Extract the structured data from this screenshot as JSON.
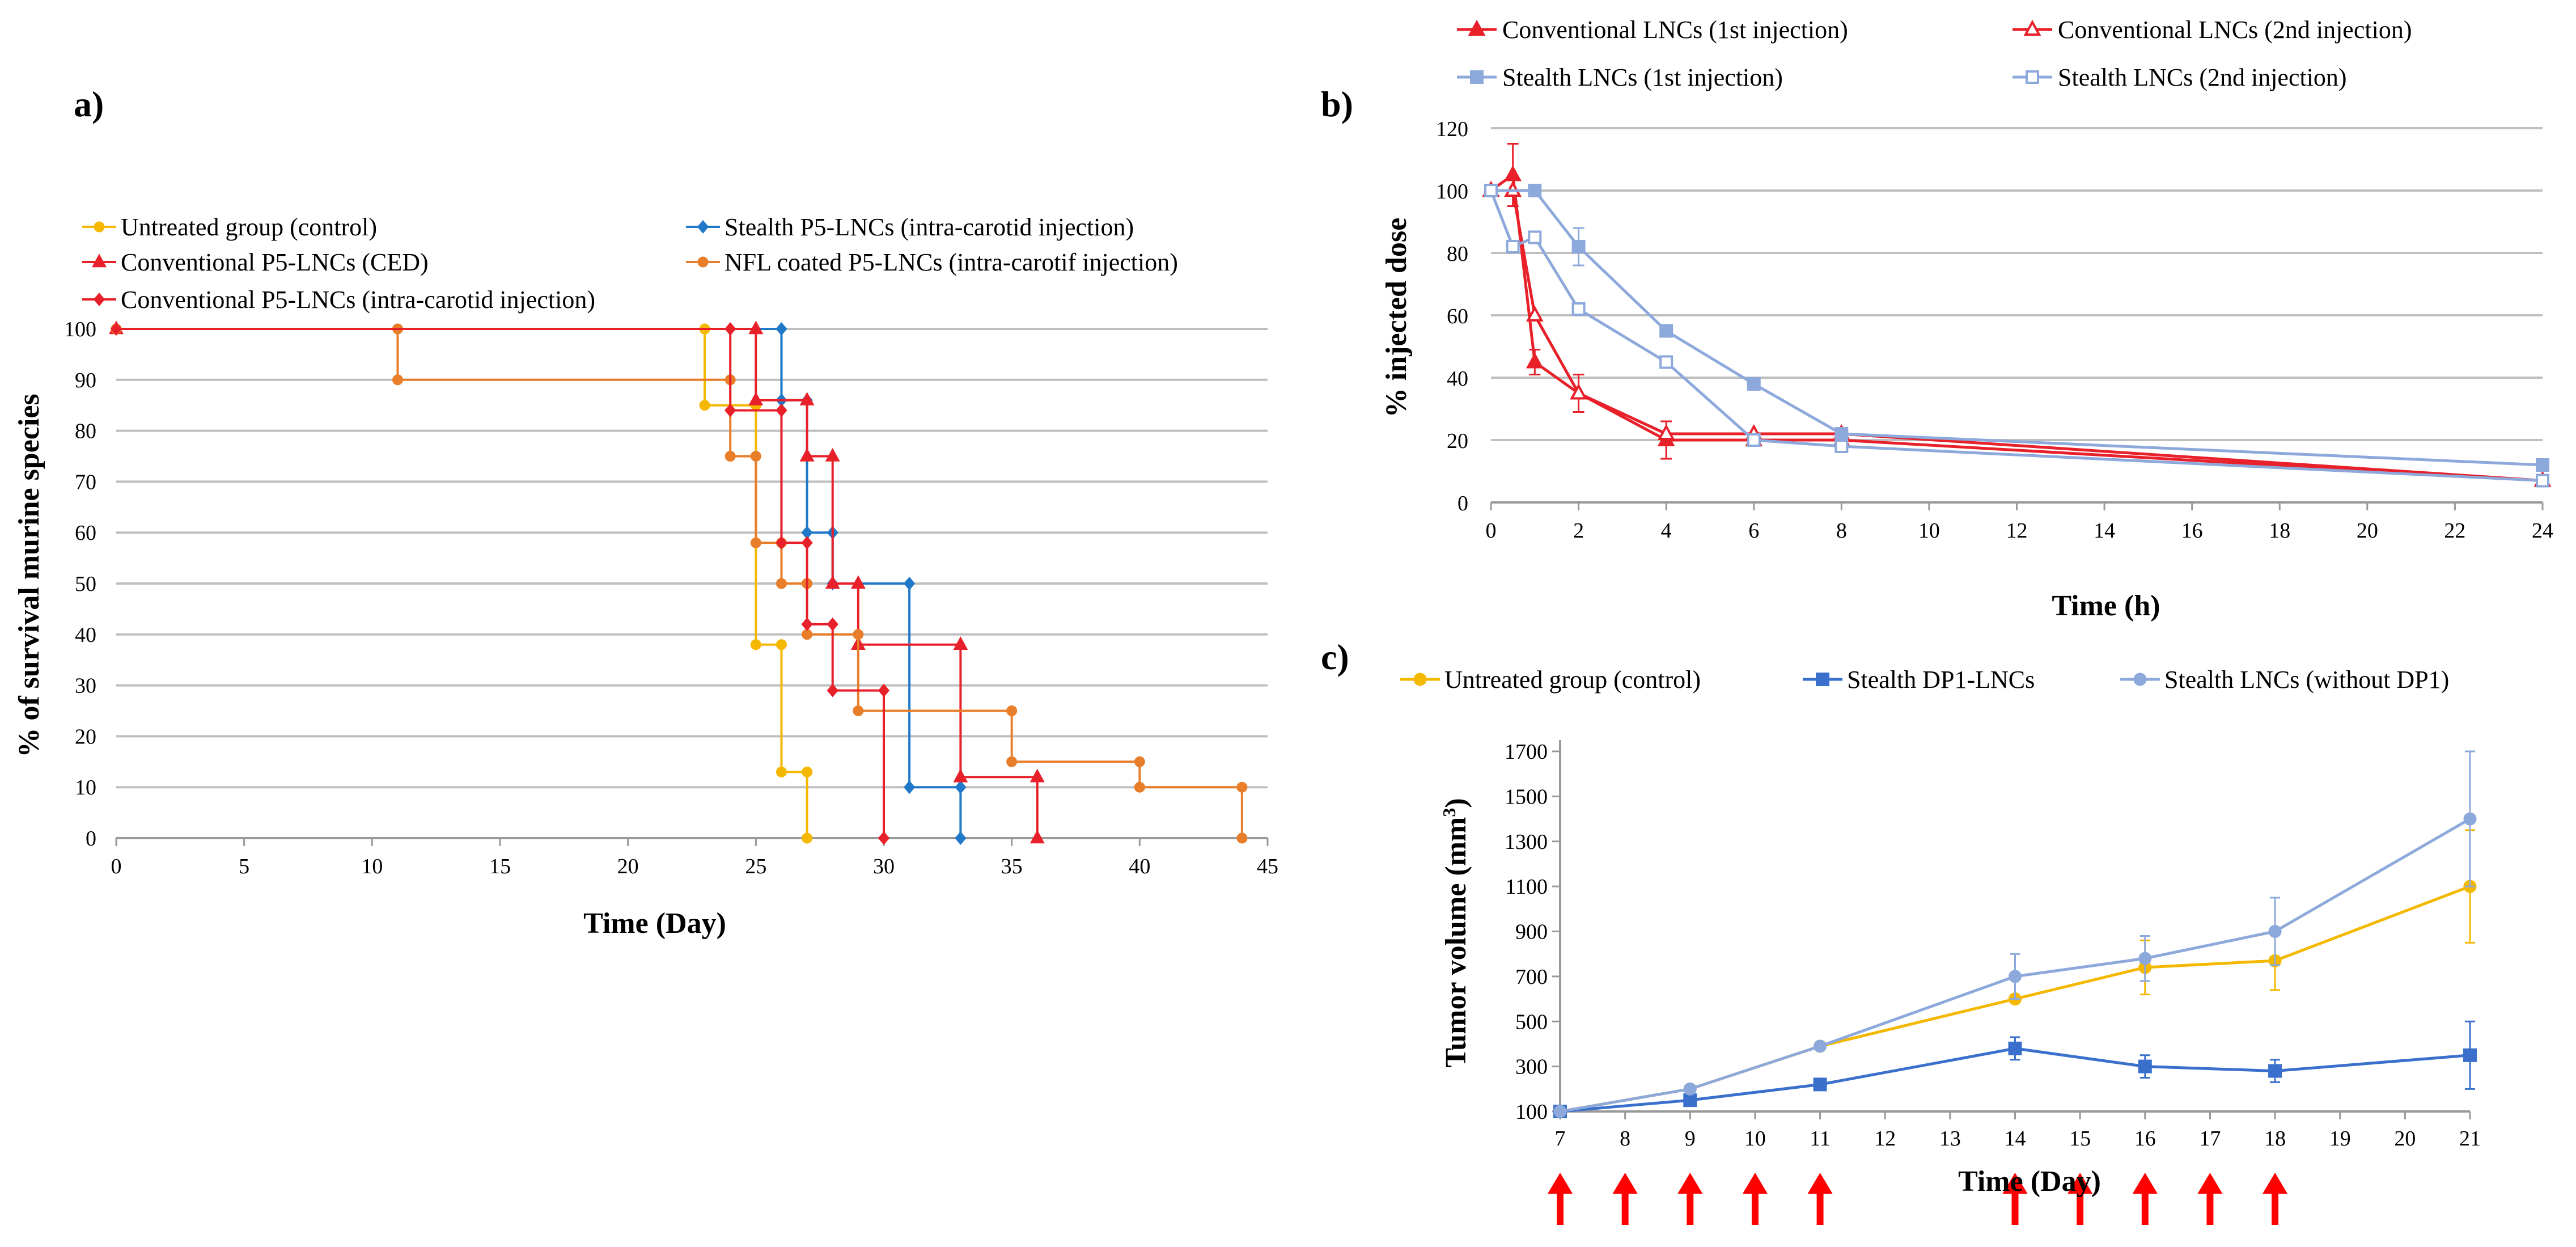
{
  "colors": {
    "untreated": "#F5B800",
    "stealth_p5": "#1F78C8",
    "conventional_ced": "#E8202A",
    "nfl": "#E87E2A",
    "conventional_ic": "#E8202A",
    "conv_lnc": "#E8202A",
    "stealth_lnc": "#8DA9DB",
    "stealth_dp1": "#3A6FCC",
    "grid": "#BFBFBF",
    "arrow": "#FF0000"
  },
  "chart_data": [
    {
      "id": "a",
      "label": "a)",
      "type": "line",
      "subtype": "step",
      "xlabel": "Time (Day)",
      "ylabel": "% of survival murine species",
      "xlim": [
        0,
        45
      ],
      "ylim": [
        0,
        100
      ],
      "xticks": [
        "0",
        "5",
        "10",
        "15",
        "20",
        "25",
        "30",
        "35",
        "40",
        "45"
      ],
      "yticks": [
        "0",
        "10",
        "20",
        "30",
        "40",
        "50",
        "60",
        "70",
        "80",
        "90",
        "100"
      ],
      "grid": true,
      "series": [
        {
          "key": "untreated",
          "name": "Untreated group (control)",
          "marker": "circle",
          "color": "#F5B800",
          "x": [
            0,
            23,
            23,
            25,
            25,
            26,
            26,
            27,
            27
          ],
          "y": [
            100,
            100,
            85,
            85,
            38,
            38,
            13,
            13,
            0
          ]
        },
        {
          "key": "stealth_p5",
          "name": "Stealth P5-LNCs (intra-carotid injection)",
          "marker": "diamond",
          "color": "#1F78C8",
          "x": [
            0,
            26,
            26,
            27,
            27,
            28,
            28,
            31,
            31,
            33,
            33
          ],
          "y": [
            100,
            100,
            86,
            86,
            60,
            60,
            50,
            50,
            10,
            10,
            0
          ]
        },
        {
          "key": "conventional_ced",
          "name": "Conventional P5-LNCs (CED)",
          "marker": "triangle",
          "color": "#E8202A",
          "x": [
            0,
            25,
            25,
            27,
            27,
            28,
            28,
            29,
            29,
            33,
            33,
            36,
            36
          ],
          "y": [
            100,
            100,
            86,
            86,
            75,
            75,
            50,
            50,
            38,
            38,
            12,
            12,
            0
          ]
        },
        {
          "key": "nfl",
          "name": "NFL coated P5-LNCs (intra-carotif injection)",
          "marker": "circle",
          "color": "#E87E2A",
          "x": [
            0,
            11,
            11,
            24,
            24,
            25,
            25,
            26,
            26,
            27,
            27,
            29,
            29,
            35,
            35,
            40,
            40,
            44,
            44
          ],
          "y": [
            100,
            100,
            90,
            90,
            75,
            75,
            58,
            58,
            50,
            50,
            40,
            40,
            25,
            25,
            15,
            15,
            10,
            10,
            0
          ]
        },
        {
          "key": "conventional_ic",
          "name": "Conventional P5-LNCs (intra-carotid injection)",
          "marker": "diamond",
          "color": "#E8202A",
          "x": [
            0,
            24,
            24,
            26,
            26,
            27,
            27,
            28,
            28,
            30,
            30
          ],
          "y": [
            100,
            100,
            84,
            84,
            58,
            58,
            42,
            42,
            29,
            29,
            0
          ]
        }
      ]
    },
    {
      "id": "b",
      "label": "b)",
      "type": "line",
      "xlabel": "Time (h)",
      "ylabel": "% injected dose",
      "xlim": [
        0,
        24
      ],
      "ylim": [
        0,
        120
      ],
      "xticks": [
        "0",
        "2",
        "4",
        "6",
        "8",
        "10",
        "12",
        "14",
        "16",
        "18",
        "20",
        "22",
        "24"
      ],
      "yticks": [
        "0",
        "20",
        "40",
        "60",
        "80",
        "100",
        "120"
      ],
      "grid": true,
      "series": [
        {
          "key": "conv1",
          "name": "Conventional LNCs (1st injection)",
          "marker": "triangle",
          "filled": true,
          "color": "#E8202A",
          "x": [
            0,
            0.5,
            1,
            2,
            4,
            6,
            8,
            24
          ],
          "y": [
            100,
            105,
            45,
            35,
            20,
            20,
            20,
            7
          ],
          "err": [
            0,
            10,
            4,
            6,
            6,
            0,
            0,
            0
          ]
        },
        {
          "key": "conv2",
          "name": "Conventional LNCs (2nd injection)",
          "marker": "triangle",
          "filled": false,
          "color": "#E8202A",
          "x": [
            0,
            0.5,
            1,
            2,
            4,
            6,
            8,
            24
          ],
          "y": [
            100,
            100,
            60,
            35,
            22,
            22,
            22,
            7
          ],
          "err": [
            0,
            0,
            0,
            0,
            0,
            0,
            0,
            0
          ]
        },
        {
          "key": "stealth1",
          "name": "Stealth LNCs (1st injection)",
          "marker": "square",
          "filled": true,
          "color": "#8DA9DB",
          "x": [
            0,
            1,
            2,
            4,
            6,
            8,
            24
          ],
          "y": [
            100,
            100,
            82,
            55,
            38,
            22,
            12
          ],
          "err": [
            0,
            0,
            6,
            0,
            0,
            0,
            0
          ]
        },
        {
          "key": "stealth2",
          "name": "Stealth LNCs (2nd injection)",
          "marker": "square",
          "filled": false,
          "color": "#8DA9DB",
          "x": [
            0,
            0.5,
            1,
            2,
            4,
            6,
            8,
            24
          ],
          "y": [
            100,
            82,
            85,
            62,
            45,
            20,
            18,
            7
          ],
          "err": [
            0,
            0,
            0,
            0,
            0,
            0,
            0,
            0
          ]
        }
      ]
    },
    {
      "id": "c",
      "label": "c)",
      "type": "line",
      "xlabel": "Time (Day)",
      "ylabel": "Tumor volume (mm",
      "ylabel_sup": "3",
      "ylabel_end": ")",
      "xlim": [
        7,
        21
      ],
      "ylim": [
        100,
        1700
      ],
      "xticks": [
        "7",
        "8",
        "9",
        "10",
        "11",
        "12",
        "13",
        "14",
        "15",
        "16",
        "17",
        "18",
        "19",
        "20",
        "21"
      ],
      "yticks": [
        "100",
        "300",
        "500",
        "700",
        "900",
        "1100",
        "1300",
        "1500",
        "1700"
      ],
      "grid": false,
      "injection_days": [
        7,
        8,
        9,
        10,
        11,
        14,
        15,
        16,
        17,
        18
      ],
      "series": [
        {
          "key": "untreated",
          "name": "Untreated group (control)",
          "marker": "circle",
          "color": "#F5B800",
          "x": [
            7,
            9,
            11,
            14,
            16,
            18,
            21
          ],
          "y": [
            100,
            200,
            390,
            600,
            740,
            770,
            1100
          ],
          "err": [
            0,
            0,
            0,
            0,
            120,
            130,
            250
          ]
        },
        {
          "key": "stealth_dp1",
          "name": "Stealth DP1-LNCs",
          "marker": "square",
          "color": "#3A6FCC",
          "x": [
            7,
            9,
            11,
            14,
            16,
            18,
            21
          ],
          "y": [
            100,
            150,
            220,
            380,
            300,
            280,
            350
          ],
          "err": [
            0,
            0,
            0,
            50,
            50,
            50,
            150
          ]
        },
        {
          "key": "stealth_lnc",
          "name": "Stealth LNCs (without DP1)",
          "marker": "circle",
          "color": "#8DA9DB",
          "x": [
            7,
            9,
            11,
            14,
            16,
            18,
            21
          ],
          "y": [
            100,
            200,
            390,
            700,
            780,
            900,
            1400
          ],
          "err": [
            0,
            0,
            0,
            100,
            100,
            150,
            300
          ]
        }
      ]
    }
  ]
}
